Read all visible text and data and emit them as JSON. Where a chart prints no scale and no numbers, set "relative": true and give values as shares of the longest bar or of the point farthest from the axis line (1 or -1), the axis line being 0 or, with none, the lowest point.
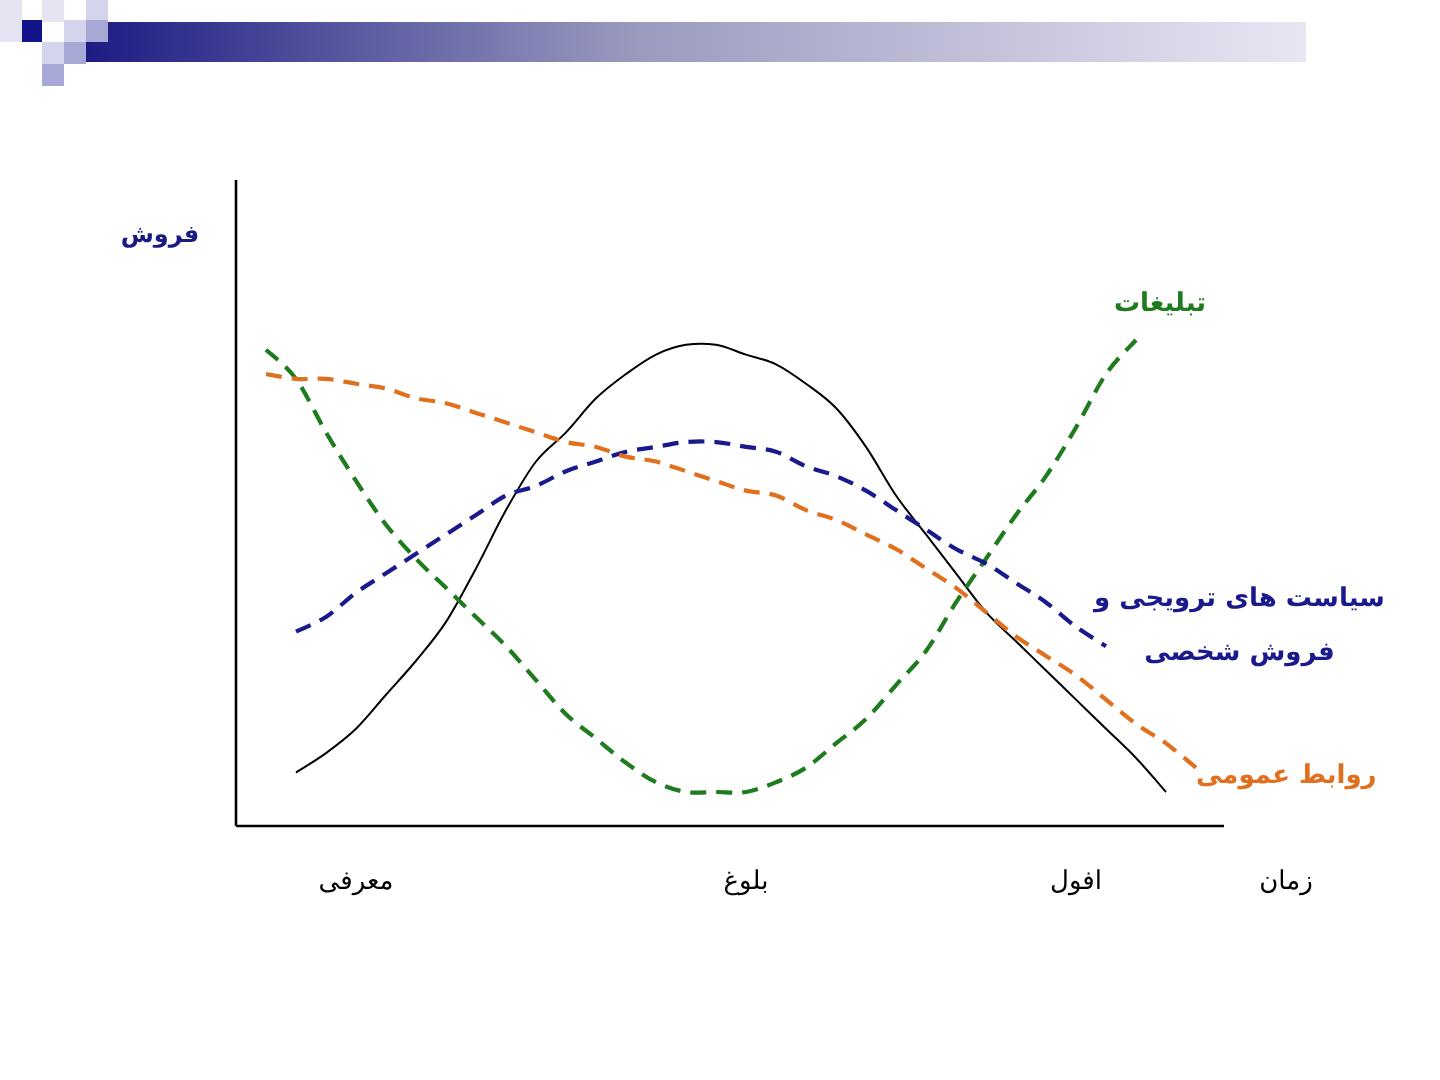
{
  "chart_data": {
    "type": "line",
    "relative": true,
    "xlabel": "زمان",
    "ylabel": "فروش",
    "categories": [
      null,
      null,
      null,
      "معرفی",
      null,
      null,
      null,
      null,
      null,
      null,
      null,
      null,
      null,
      null,
      null,
      null,
      "بلوغ",
      null,
      null,
      null,
      null,
      null,
      null,
      null,
      null,
      null,
      null,
      "افول",
      null,
      null,
      null,
      null
    ],
    "series": [
      {
        "color": "#000000",
        "line_style": "solid",
        "values": [
          null,
          0.11,
          0.15,
          0.2,
          0.27,
          0.34,
          0.42,
          0.53,
          0.65,
          0.75,
          0.81,
          0.88,
          0.93,
          0.97,
          0.99,
          0.99,
          0.97,
          0.95,
          0.91,
          0.86,
          0.78,
          0.68,
          0.6,
          0.52,
          0.44,
          0.38,
          0.32,
          0.26,
          0.2,
          0.14,
          0.07,
          null
        ]
      },
      {
        "name": "تبلیغات",
        "color": "#1e7b1e",
        "line_style": "dashed",
        "values": [
          0.98,
          0.92,
          0.81,
          0.71,
          0.62,
          0.55,
          0.49,
          0.43,
          0.37,
          0.3,
          0.23,
          0.18,
          0.13,
          0.09,
          0.07,
          0.07,
          0.07,
          0.09,
          0.12,
          0.17,
          0.22,
          0.29,
          0.36,
          0.46,
          0.55,
          0.64,
          0.72,
          0.82,
          0.93,
          1,
          null,
          null
        ]
      },
      {
        "name": "سیاست های ترویجی و فروش شخصی",
        "color": "#1a1a8c",
        "line_style": "dashed",
        "values": [
          null,
          0.4,
          0.43,
          0.48,
          0.52,
          0.56,
          0.6,
          0.64,
          0.68,
          0.7,
          0.73,
          0.75,
          0.77,
          0.78,
          0.79,
          0.79,
          0.78,
          0.77,
          0.74,
          0.72,
          0.69,
          0.65,
          0.61,
          0.57,
          0.54,
          0.5,
          0.46,
          0.41,
          0.37,
          null,
          null,
          null
        ]
      },
      {
        "name": "روابط عمومی",
        "color": "#e0701e",
        "line_style": "dashed",
        "values": [
          0.93,
          0.92,
          0.92,
          0.91,
          0.9,
          0.88,
          0.87,
          0.85,
          0.83,
          0.81,
          0.79,
          0.78,
          0.76,
          0.75,
          0.73,
          0.71,
          0.69,
          0.68,
          0.65,
          0.63,
          0.6,
          0.57,
          0.53,
          0.49,
          0.44,
          0.39,
          0.35,
          0.31,
          0.26,
          0.21,
          0.17,
          0.12
        ]
      }
    ]
  }
}
